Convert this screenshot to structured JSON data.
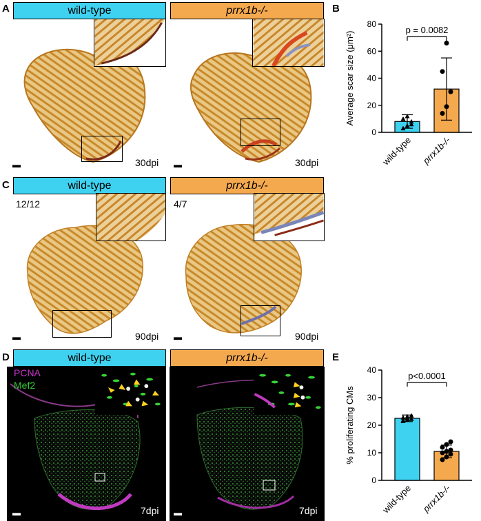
{
  "panels": {
    "A": {
      "label": "A",
      "left_header": "wild-type",
      "right_header": "prrx1b-/-",
      "left_time": "30dpi",
      "right_time": "30dpi"
    },
    "B": {
      "label": "B"
    },
    "C": {
      "label": "C",
      "left_header": "wild-type",
      "right_header": "prrx1b-/-",
      "left_ratio": "12/12",
      "right_ratio": "4/7",
      "left_time": "90dpi",
      "right_time": "90dpi"
    },
    "D": {
      "label": "D",
      "left_header": "wild-type",
      "right_header": "prrx1b-/-",
      "stain1": "PCNA",
      "stain2": "Mef2",
      "left_time": "7dpi",
      "right_time": "7dpi"
    },
    "E": {
      "label": "E"
    }
  },
  "colors": {
    "wildtype": "#3ed2f0",
    "mutant": "#f5a94e",
    "pcna": "#cc33cc",
    "mef2": "#33cc33",
    "tissue": "#d89a3a"
  },
  "chart_data": [
    {
      "type": "bar",
      "panel": "B",
      "categories": [
        "wild-type",
        "prrx1b-/-"
      ],
      "values": [
        8,
        32
      ],
      "errors": [
        5,
        23
      ],
      "points": [
        [
          3,
          5,
          8,
          10,
          12,
          6
        ],
        [
          14,
          19,
          30,
          45,
          66
        ]
      ],
      "ylabel": "Average scar size (μm²)",
      "ylim": [
        0,
        80
      ],
      "yticks": [
        0,
        20,
        40,
        60,
        80
      ],
      "annotation": "p = 0.0082"
    },
    {
      "type": "bar",
      "panel": "E",
      "categories": [
        "wild-type",
        "prrx1b-/-"
      ],
      "values": [
        22.5,
        10.5
      ],
      "errors": [
        1.2,
        2.3
      ],
      "points": [
        [
          21.5,
          22,
          22.3,
          22.8,
          23.2,
          23.5,
          21.8,
          22.6
        ],
        [
          7.5,
          8.5,
          9.5,
          10,
          10.5,
          11,
          12,
          13,
          14
        ]
      ],
      "ylabel": "% proliferating CMs",
      "ylim": [
        0,
        40
      ],
      "yticks": [
        0,
        10,
        20,
        30,
        40
      ],
      "annotation": "p<0.0001"
    }
  ]
}
